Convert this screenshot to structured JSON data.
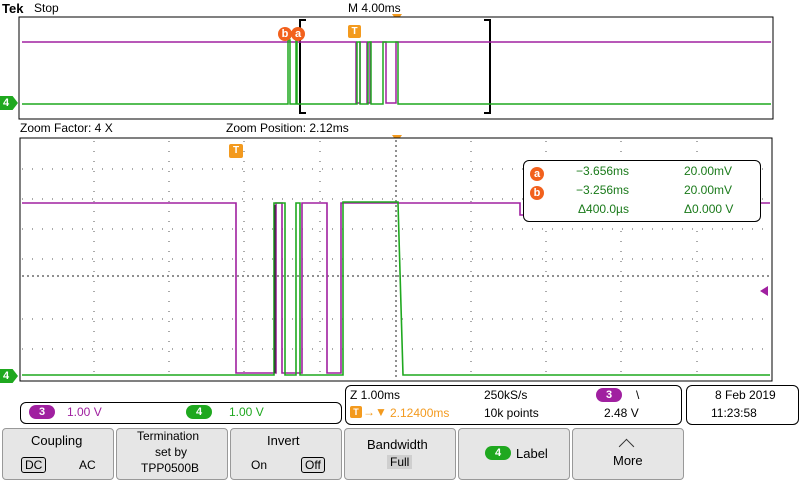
{
  "header": {
    "brand": "Tek",
    "run_state": "Stop",
    "timebase": "M 4.00ms",
    "trigger_marker": "T"
  },
  "zoom": {
    "factor_label": "Zoom Factor: 4 X",
    "position_label": "Zoom Position: 2.12ms"
  },
  "cursor_readout": {
    "a_label": "a",
    "a_time": "−3.656ms",
    "a_volt": "20.00mV",
    "b_label": "b",
    "b_time": "−3.256ms",
    "b_volt": "20.00mV",
    "delta_time": "Δ400.0µs",
    "delta_volt": "Δ0.000 V"
  },
  "channels": [
    {
      "number": "3",
      "scale": "1.00 V",
      "color": "#a020a0"
    },
    {
      "number": "4",
      "scale": "1.00 V",
      "color": "#1fa81f"
    }
  ],
  "ground_marker": "4",
  "acquisition": {
    "zoom_time": "Z 1.00ms",
    "sample_rate": "250kS/s",
    "trigger_position": "2.12400ms",
    "record_length": "10k points",
    "trigger_source": "3",
    "trigger_slope": "\\",
    "trigger_level": "2.48 V"
  },
  "datetime": {
    "date": "8 Feb  2019",
    "time": "11:23:58"
  },
  "menu": {
    "coupling": {
      "title": "Coupling",
      "opt1": "DC",
      "opt2": "AC",
      "selected": "DC"
    },
    "termination": {
      "line1": "Termination",
      "line2": "set by",
      "line3": "TPP0500B"
    },
    "invert": {
      "title": "Invert",
      "opt1": "On",
      "opt2": "Off",
      "selected": "Off"
    },
    "bandwidth": {
      "title": "Bandwidth",
      "value": "Full"
    },
    "label": {
      "channel": "4",
      "title": "Label"
    },
    "more": {
      "title": "More"
    }
  },
  "colors": {
    "ch3": "#a020a0",
    "ch4": "#1fa81f",
    "accent_orange": "#f2611d",
    "trigger_orange": "#f39a1e"
  }
}
